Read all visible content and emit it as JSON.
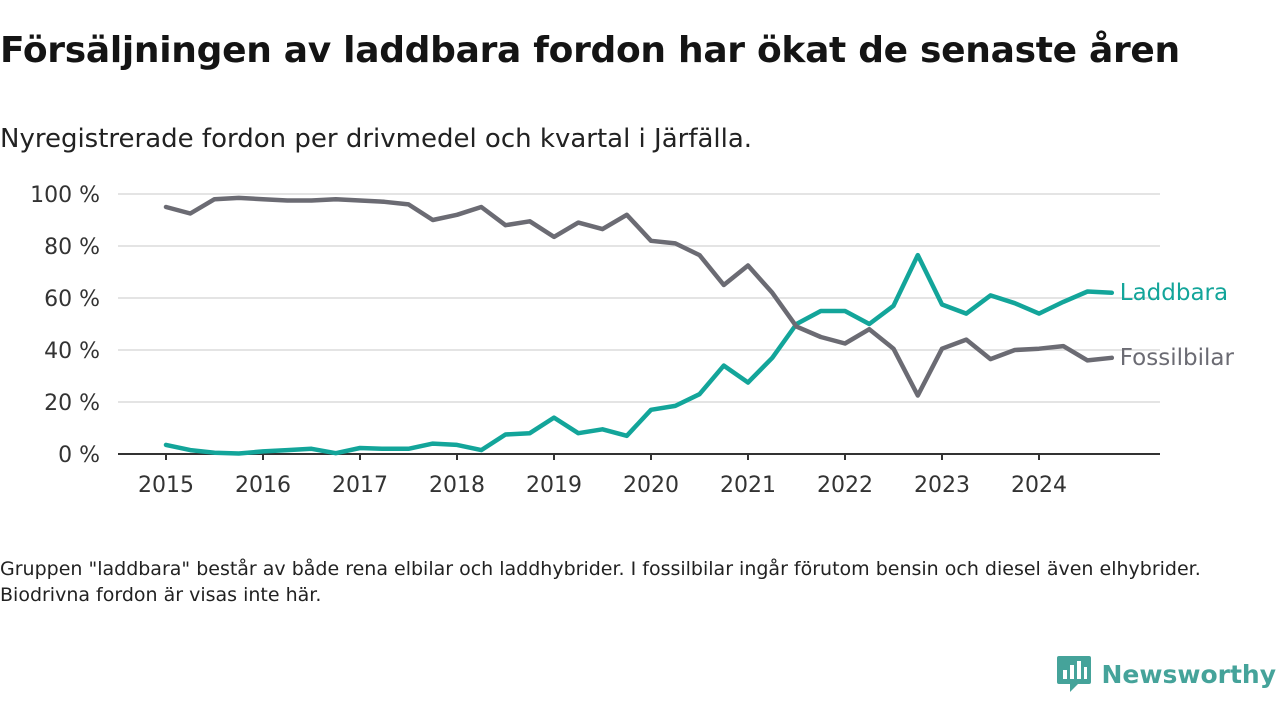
{
  "title": "Försäljningen av laddbara fordon har ökat de senaste åren",
  "subtitle": "Nyregistrerade fordon per drivmedel och kvartal i Järfälla.",
  "footnote": "Gruppen \"laddbara\" består av både rena elbilar och laddhybrider. I fossilbilar ingår förutom bensin och diesel även elhybrider. Biodrivna fordon är visas inte här.",
  "logo": {
    "name": "Newsworthy",
    "icon": "newsworthy-logo-icon"
  },
  "colors": {
    "laddbara": "#13a59a",
    "fossil": "#6b6b73",
    "grid": "#dcdcdc",
    "axis": "#333333"
  },
  "chart_data": {
    "type": "line",
    "title": "Försäljningen av laddbara fordon har ökat de senaste åren",
    "xlabel": "",
    "ylabel": "",
    "x": [
      "2015 Q1",
      "2015 Q2",
      "2015 Q3",
      "2015 Q4",
      "2016 Q1",
      "2016 Q2",
      "2016 Q3",
      "2016 Q4",
      "2017 Q1",
      "2017 Q2",
      "2017 Q3",
      "2017 Q4",
      "2018 Q1",
      "2018 Q2",
      "2018 Q3",
      "2018 Q4",
      "2019 Q1",
      "2019 Q2",
      "2019 Q3",
      "2019 Q4",
      "2020 Q1",
      "2020 Q2",
      "2020 Q3",
      "2020 Q4",
      "2021 Q1",
      "2021 Q2",
      "2021 Q3",
      "2021 Q4",
      "2022 Q1",
      "2022 Q2",
      "2022 Q3",
      "2022 Q4",
      "2023 Q1",
      "2023 Q2",
      "2023 Q3",
      "2023 Q4",
      "2024 Q1",
      "2024 Q2",
      "2024 Q3",
      "2024 Q4"
    ],
    "x_ticks": [
      "2015",
      "2016",
      "2017",
      "2018",
      "2019",
      "2020",
      "2021",
      "2022",
      "2023",
      "2024"
    ],
    "y_ticks": [
      "0 %",
      "20 %",
      "40 %",
      "60 %",
      "80 %",
      "100 %"
    ],
    "ylim": [
      0,
      100
    ],
    "grid": true,
    "legend": "inline-right",
    "series": [
      {
        "name": "Laddbara",
        "key": "laddbara",
        "values": [
          3.5,
          1.5,
          0.5,
          0.2,
          1.0,
          1.5,
          2.0,
          0.3,
          2.3,
          2.0,
          2.0,
          4.0,
          3.5,
          1.5,
          7.5,
          8.0,
          14.0,
          8.0,
          9.5,
          7.0,
          17.0,
          18.5,
          23.0,
          34.0,
          27.5,
          37.0,
          50.0,
          55.0,
          55.0,
          50.0,
          57.0,
          76.5,
          57.5,
          54.0,
          61.0,
          58.0,
          54.0,
          58.5,
          62.5,
          62.0
        ]
      },
      {
        "name": "Fossilbilar",
        "key": "fossil",
        "values": [
          95.0,
          92.5,
          98.0,
          98.5,
          98.0,
          97.5,
          97.5,
          98.0,
          97.5,
          97.0,
          96.0,
          90.0,
          92.0,
          95.0,
          88.0,
          89.5,
          83.5,
          89.0,
          86.5,
          92.0,
          82.0,
          81.0,
          76.5,
          65.0,
          72.5,
          62.0,
          49.0,
          45.0,
          42.5,
          48.0,
          40.5,
          22.5,
          40.5,
          44.0,
          36.5,
          40.0,
          40.5,
          41.5,
          36.0,
          37.0
        ]
      }
    ]
  }
}
